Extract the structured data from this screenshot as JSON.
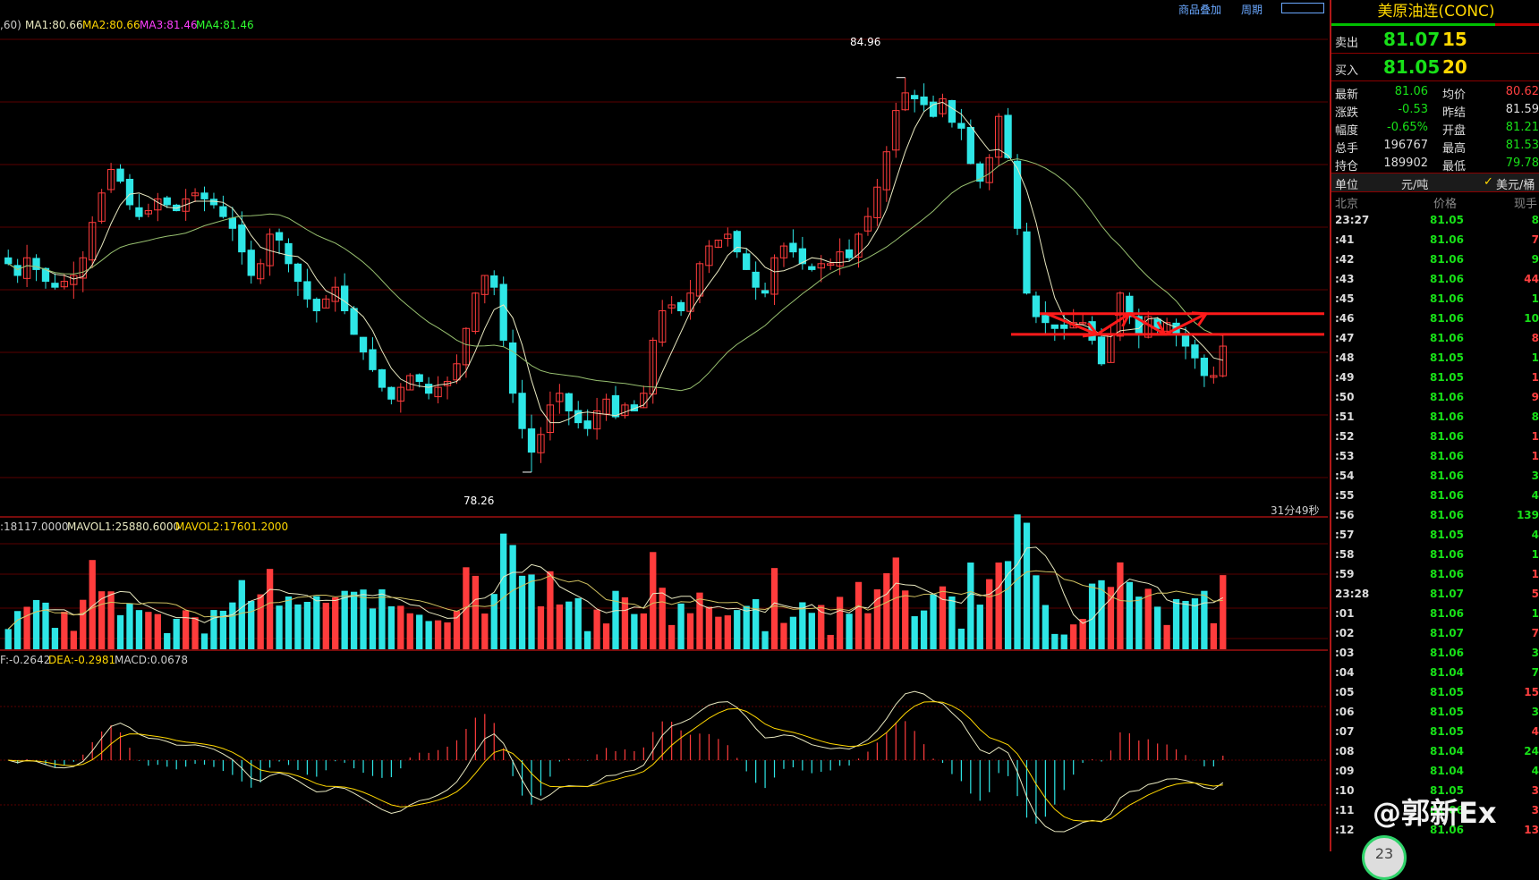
{
  "toolbar": {
    "overlay_label": "商品叠加",
    "period_label": "周期"
  },
  "main_panel": {
    "legend": {
      "prefix": ",60)",
      "ma1": "MA1:80.66",
      "ma2": "MA2:80.66",
      "ma3": "MA3:81.46",
      "ma4": "MA4:81.46"
    },
    "high_label": "84.96",
    "low_label": "78.26",
    "countdown": "31分49秒"
  },
  "volume_panel": {
    "legend": {
      "vol": ":18117.0000",
      "mavol1": "MAVOL1:25880.6000",
      "mavol2": "MAVOL2:17601.2000"
    }
  },
  "macd_panel": {
    "legend": {
      "dif": "F:-0.2642",
      "dea": "DEA:-0.2981",
      "macd": "MACD:0.0678"
    }
  },
  "quote": {
    "title": "美原油连(CONC)",
    "ask": {
      "label": "卖出",
      "price": "81.07",
      "vol": "15"
    },
    "bid": {
      "label": "买入",
      "price": "81.05",
      "vol": "20"
    },
    "stats": [
      {
        "k1": "最新",
        "v1": "81.06",
        "c1": "green",
        "k2": "均价",
        "v2": "80.62",
        "c2": "red"
      },
      {
        "k1": "涨跌",
        "v1": "-0.53",
        "c1": "green",
        "k2": "昨结",
        "v2": "81.59",
        "c2": "white"
      },
      {
        "k1": "幅度",
        "v1": "-0.65%",
        "c1": "green",
        "k2": "开盘",
        "v2": "81.21",
        "c2": "green"
      },
      {
        "k1": "总手",
        "v1": "196767",
        "c1": "white",
        "k2": "最高",
        "v2": "81.53",
        "c2": "green"
      },
      {
        "k1": "持仓",
        "v1": "189902",
        "c1": "white",
        "k2": "最低",
        "v2": "79.78",
        "c2": "green"
      }
    ],
    "unit_label": "单位",
    "unit_value": "元/吨",
    "unit_alt": "美元/桶",
    "head": {
      "time": "北京",
      "price": "价格",
      "qty": "现手"
    },
    "ticks": [
      {
        "t": "23:27",
        "p": "81.05",
        "q": "8",
        "qc": "green"
      },
      {
        "t": ":41",
        "p": "81.06",
        "q": "7",
        "qc": "red"
      },
      {
        "t": ":42",
        "p": "81.06",
        "q": "9",
        "qc": "green"
      },
      {
        "t": ":43",
        "p": "81.06",
        "q": "44",
        "qc": "red"
      },
      {
        "t": ":45",
        "p": "81.06",
        "q": "1",
        "qc": "green"
      },
      {
        "t": ":46",
        "p": "81.06",
        "q": "10",
        "qc": "green"
      },
      {
        "t": ":47",
        "p": "81.06",
        "q": "8",
        "qc": "red"
      },
      {
        "t": ":48",
        "p": "81.05",
        "q": "1",
        "qc": "green"
      },
      {
        "t": ":49",
        "p": "81.05",
        "q": "1",
        "qc": "red"
      },
      {
        "t": ":50",
        "p": "81.06",
        "q": "9",
        "qc": "red"
      },
      {
        "t": ":51",
        "p": "81.06",
        "q": "8",
        "qc": "green"
      },
      {
        "t": ":52",
        "p": "81.06",
        "q": "1",
        "qc": "red"
      },
      {
        "t": ":53",
        "p": "81.06",
        "q": "1",
        "qc": "red"
      },
      {
        "t": ":54",
        "p": "81.06",
        "q": "3",
        "qc": "green"
      },
      {
        "t": ":55",
        "p": "81.06",
        "q": "4",
        "qc": "green"
      },
      {
        "t": ":56",
        "p": "81.06",
        "q": "139",
        "qc": "green"
      },
      {
        "t": ":57",
        "p": "81.05",
        "q": "4",
        "qc": "green"
      },
      {
        "t": ":58",
        "p": "81.06",
        "q": "1",
        "qc": "green"
      },
      {
        "t": ":59",
        "p": "81.06",
        "q": "1",
        "qc": "red"
      },
      {
        "t": "23:28",
        "p": "81.07",
        "q": "5",
        "qc": "red"
      },
      {
        "t": ":01",
        "p": "81.06",
        "q": "1",
        "qc": "green"
      },
      {
        "t": ":02",
        "p": "81.07",
        "q": "7",
        "qc": "red"
      },
      {
        "t": ":03",
        "p": "81.06",
        "q": "3",
        "qc": "green"
      },
      {
        "t": ":04",
        "p": "81.04",
        "q": "7",
        "qc": "green"
      },
      {
        "t": ":05",
        "p": "81.05",
        "q": "15",
        "qc": "red"
      },
      {
        "t": ":06",
        "p": "81.05",
        "q": "3",
        "qc": "green"
      },
      {
        "t": ":07",
        "p": "81.05",
        "q": "4",
        "qc": "red"
      },
      {
        "t": ":08",
        "p": "81.04",
        "q": "24",
        "qc": "green"
      },
      {
        "t": ":09",
        "p": "81.04",
        "q": "4",
        "qc": "green"
      },
      {
        "t": ":10",
        "p": "81.05",
        "q": "3",
        "qc": "red"
      },
      {
        "t": ":11",
        "p": "81.06",
        "q": "3",
        "qc": "red"
      },
      {
        "t": ":12",
        "p": "81.06",
        "q": "13",
        "qc": "red"
      }
    ],
    "watermark": "@郭新Ex",
    "badge": "23"
  },
  "colors": {
    "up": "#ff3c3c",
    "down": "#2ee6e6",
    "ma_fast": "#e8e8c0",
    "ma_slow": "#98c070",
    "grid": "#5a0000",
    "annotation": "#ff1a1a"
  },
  "chart_data": {
    "type": "candlestick",
    "price_range": [
      77.5,
      85.7
    ],
    "highest": 84.96,
    "lowest": 78.26,
    "closes": [
      81.8,
      81.6,
      81.9,
      81.7,
      81.5,
      81.4,
      81.5,
      81.6,
      81.9,
      82.5,
      83.0,
      83.4,
      83.2,
      82.8,
      82.6,
      82.7,
      82.9,
      82.8,
      82.7,
      82.9,
      83.0,
      82.9,
      82.8,
      82.6,
      82.4,
      82.0,
      81.6,
      81.8,
      82.3,
      82.2,
      81.8,
      81.5,
      81.2,
      81.0,
      81.2,
      81.4,
      81.0,
      80.6,
      80.3,
      80.0,
      79.7,
      79.5,
      79.7,
      79.9,
      79.8,
      79.6,
      79.7,
      79.8,
      80.1,
      80.7,
      81.3,
      81.6,
      81.4,
      80.5,
      79.6,
      79.0,
      78.6,
      78.9,
      79.4,
      79.6,
      79.3,
      79.1,
      79.0,
      79.3,
      79.5,
      79.2,
      79.4,
      79.3,
      79.6,
      80.5,
      81.0,
      81.1,
      81.0,
      81.3,
      81.8,
      82.1,
      82.2,
      82.3,
      82.0,
      81.7,
      81.4,
      81.3,
      81.9,
      82.1,
      82.0,
      81.8,
      81.7,
      81.8,
      81.8,
      82.0,
      81.9,
      82.3,
      82.6,
      83.1,
      83.7,
      84.4,
      84.7,
      84.6,
      84.5,
      84.3,
      84.6,
      84.2,
      84.1,
      83.5,
      83.2,
      83.6,
      84.3,
      83.6,
      82.4,
      81.3,
      80.9,
      80.8,
      80.7,
      80.7,
      80.8,
      80.8,
      80.5,
      80.1,
      80.6,
      81.3,
      80.9,
      80.6,
      80.9,
      80.7,
      80.8,
      80.6,
      80.4,
      80.2,
      79.9,
      79.9,
      80.4
    ],
    "volume_range": [
      0,
      45000
    ],
    "volume_legend": {
      "vol": 18117.0,
      "mavol1": 25880.6,
      "mavol2": 17601.2
    },
    "macd_legend": {
      "dif": -0.2642,
      "dea": -0.2981,
      "macd": 0.0678
    },
    "annotations": {
      "resistance_price": 80.95,
      "support_price": 80.6,
      "zigzag_prices": [
        80.95,
        80.6,
        80.95,
        80.6,
        80.95
      ]
    }
  }
}
